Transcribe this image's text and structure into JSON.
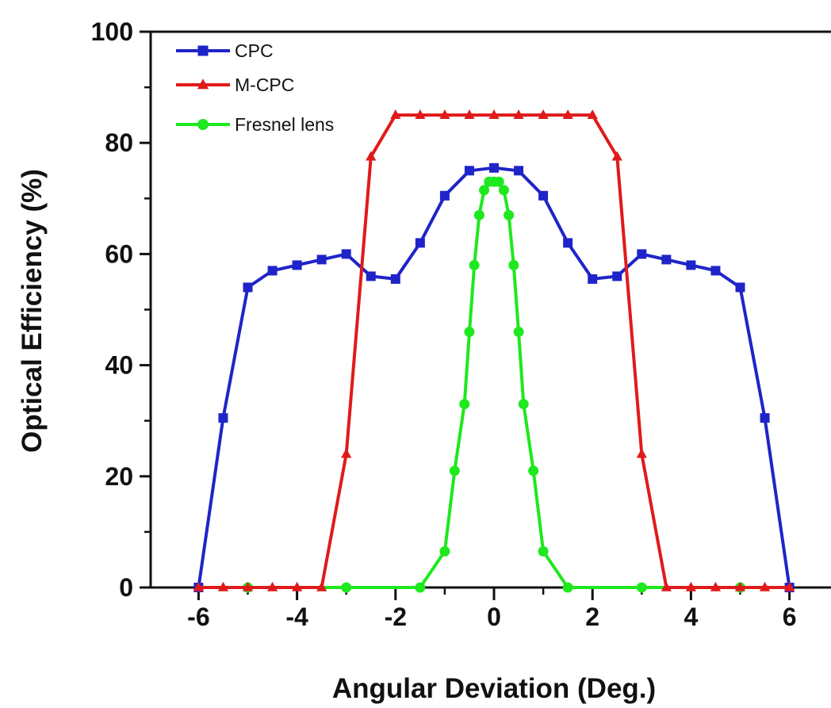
{
  "chart_data": {
    "type": "line",
    "xlabel": "Angular Deviation (Deg.)",
    "ylabel": "Optical Efficiency (%)",
    "xlim": [
      -6.4,
      6.8
    ],
    "ylim": [
      0,
      100
    ],
    "x_ticks": [
      -6,
      -4,
      -2,
      0,
      2,
      4,
      6
    ],
    "y_ticks": [
      0,
      20,
      40,
      60,
      80,
      100
    ],
    "grid": false,
    "legend_position": "top-left",
    "series": [
      {
        "name": "CPC",
        "color": "#1f24c8",
        "marker": "square",
        "x": [
          -6,
          -5.5,
          -5,
          -4.5,
          -4,
          -3.5,
          -3,
          -2.5,
          -2,
          -1.5,
          -1,
          -0.5,
          0,
          0.5,
          1,
          1.5,
          2,
          2.5,
          3,
          3.5,
          4,
          4.5,
          5,
          5.5,
          6
        ],
        "y": [
          0,
          30.5,
          54,
          57,
          58,
          59,
          60,
          56,
          55.5,
          62,
          70.5,
          75,
          75.5,
          75,
          70.5,
          62,
          55.5,
          56,
          60,
          59,
          58,
          57,
          54,
          30.5,
          0
        ]
      },
      {
        "name": "M-CPC",
        "color": "#e01a1a",
        "marker": "triangle",
        "x": [
          -6,
          -5.5,
          -5,
          -4.5,
          -4,
          -3.5,
          -3,
          -2.5,
          -2,
          -1.5,
          -1,
          -0.5,
          0,
          0.5,
          1,
          1.5,
          2,
          2.5,
          3,
          3.5,
          4,
          4.5,
          5,
          5.5,
          6
        ],
        "y": [
          0,
          0,
          0,
          0,
          0,
          0,
          24,
          77.5,
          85,
          85,
          85,
          85,
          85,
          85,
          85,
          85,
          85,
          77.5,
          24,
          0,
          0,
          0,
          0,
          0,
          0
        ]
      },
      {
        "name": "Fresnel lens",
        "color": "#1ee81e",
        "marker": "circle",
        "x": [
          -5,
          -3,
          -1.5,
          -1,
          -0.8,
          -0.6,
          -0.5,
          -0.4,
          -0.3,
          -0.2,
          -0.1,
          0,
          0.1,
          0.2,
          0.3,
          0.4,
          0.5,
          0.6,
          0.8,
          1,
          1.5,
          3,
          5
        ],
        "y": [
          0,
          0,
          0,
          6.5,
          21,
          33,
          46,
          58,
          67,
          71.5,
          73,
          73,
          73,
          71.5,
          67,
          58,
          46,
          33,
          21,
          6.5,
          0,
          0,
          0
        ]
      }
    ]
  }
}
